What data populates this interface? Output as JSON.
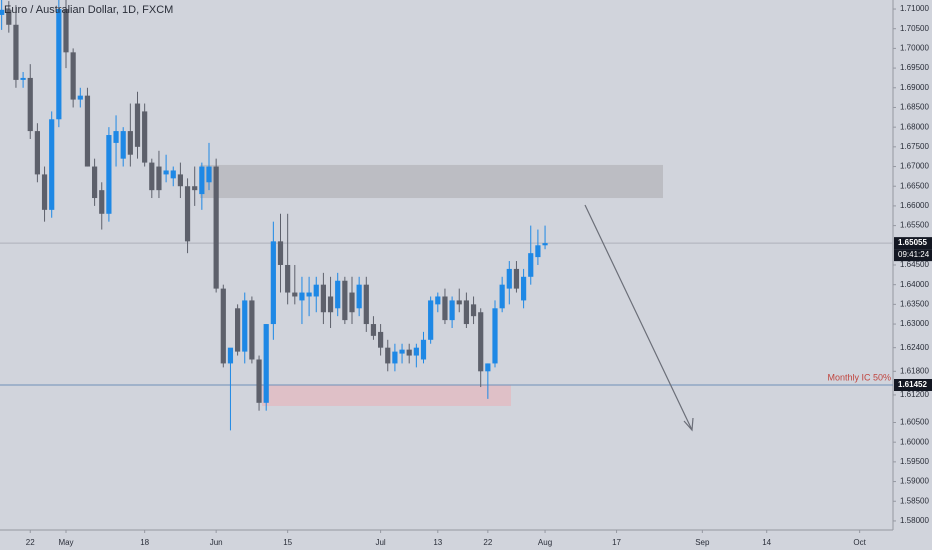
{
  "chart_data": {
    "type": "candlestick",
    "title": "Euro / Australian Dollar, 1D, FXCM",
    "categories": [
      null,
      null,
      null,
      null,
      "22",
      null,
      null,
      null,
      null,
      "May",
      null,
      null,
      null,
      null,
      null,
      null,
      null,
      null,
      null,
      null,
      "18",
      null,
      null,
      null,
      null,
      null,
      null,
      null,
      null,
      null,
      "Jun",
      null,
      null,
      null,
      null,
      null,
      null,
      null,
      null,
      null,
      "15",
      null,
      null,
      null,
      null,
      null,
      null,
      null,
      null,
      null,
      null,
      null,
      null,
      "Jul",
      null,
      null,
      null,
      null,
      null,
      null,
      null,
      "13",
      null,
      null,
      null,
      null,
      null,
      null,
      "22",
      null,
      null,
      null,
      null,
      null,
      null,
      null,
      "Aug",
      null,
      null,
      null,
      null,
      null,
      null,
      null,
      null,
      null,
      "17",
      null,
      null,
      null,
      null,
      null,
      null,
      null,
      null,
      null,
      null,
      null,
      "Sep",
      null,
      null,
      null,
      null,
      null,
      null,
      null,
      null,
      "14",
      null,
      null,
      null,
      null,
      null,
      null,
      null,
      null,
      null,
      null,
      null,
      null,
      "Oct",
      null,
      null,
      null
    ],
    "open": [
      1.7085,
      1.7098,
      1.706,
      1.692,
      1.6925,
      1.679,
      1.668,
      1.659,
      1.682,
      1.71,
      1.699,
      1.687,
      1.688,
      1.67,
      1.664,
      1.658,
      1.676,
      1.672,
      1.679,
      1.686,
      1.684,
      1.671,
      1.67,
      1.668,
      1.667,
      1.668,
      1.665,
      1.665,
      1.663,
      1.666,
      1.67,
      1.639,
      1.62,
      1.634,
      1.623,
      1.636,
      1.621,
      1.61,
      1.63,
      1.651,
      1.645,
      1.638,
      1.636,
      1.637,
      1.637,
      1.64,
      1.637,
      1.634,
      1.641,
      1.638,
      1.634,
      1.64,
      1.63,
      1.628,
      1.624,
      1.62,
      1.6225,
      1.6235,
      1.622,
      1.621,
      1.626,
      1.635,
      1.637,
      1.631,
      1.636,
      1.636,
      1.635,
      1.633,
      1.618,
      1.62,
      1.634,
      1.639,
      1.644,
      1.636,
      1.642,
      1.647,
      1.65,
      null,
      null,
      null,
      null,
      null,
      null,
      null,
      null,
      null,
      null,
      null,
      null,
      null,
      null,
      null,
      null,
      null,
      null,
      null,
      null,
      null,
      null,
      null,
      null,
      null,
      null,
      null,
      null,
      null,
      null,
      null,
      null,
      null,
      null,
      null,
      null,
      null,
      null,
      null,
      null,
      null,
      null,
      null,
      null,
      null,
      null,
      null
    ],
    "high": [
      1.7123,
      1.712,
      1.711,
      1.694,
      1.696,
      1.681,
      1.67,
      1.684,
      1.7123,
      1.7123,
      1.7,
      1.69,
      1.69,
      1.672,
      1.666,
      1.68,
      1.683,
      1.68,
      1.686,
      1.689,
      1.686,
      1.672,
      1.674,
      1.673,
      1.67,
      1.671,
      1.667,
      1.67,
      1.671,
      1.676,
      1.672,
      1.64,
      1.623,
      1.635,
      1.638,
      1.637,
      1.622,
      1.63,
      1.656,
      1.658,
      1.658,
      1.645,
      1.642,
      1.642,
      1.642,
      1.643,
      1.642,
      1.643,
      1.642,
      1.642,
      1.642,
      1.642,
      1.632,
      1.63,
      1.626,
      1.625,
      1.625,
      1.625,
      1.625,
      1.628,
      1.637,
      1.638,
      1.639,
      1.637,
      1.639,
      1.638,
      1.637,
      1.634,
      1.62,
      1.636,
      1.642,
      1.646,
      1.646,
      1.644,
      1.655,
      1.654,
      1.655,
      null,
      null,
      null,
      null,
      null,
      null,
      null,
      null,
      null,
      null,
      null,
      null,
      null,
      null,
      null,
      null,
      null,
      null,
      null,
      null,
      null,
      null,
      null,
      null,
      null,
      null,
      null,
      null,
      null,
      null,
      null,
      null,
      null,
      null,
      null,
      null,
      null,
      null,
      null,
      null,
      null,
      null,
      null,
      null,
      null,
      null,
      null
    ],
    "low": [
      1.7047,
      1.704,
      1.69,
      1.69,
      1.677,
      1.666,
      1.656,
      1.657,
      1.68,
      1.695,
      1.685,
      1.685,
      1.67,
      1.66,
      1.654,
      1.656,
      1.67,
      1.67,
      1.67,
      1.672,
      1.67,
      1.662,
      1.662,
      1.666,
      1.665,
      1.662,
      1.648,
      1.66,
      1.659,
      1.664,
      1.638,
      1.619,
      1.603,
      1.622,
      1.62,
      1.62,
      1.608,
      1.608,
      1.626,
      1.638,
      1.635,
      1.635,
      1.63,
      1.632,
      1.633,
      1.63,
      1.629,
      1.632,
      1.63,
      1.63,
      1.632,
      1.628,
      1.626,
      1.622,
      1.618,
      1.618,
      1.62,
      1.62,
      1.619,
      1.62,
      1.625,
      1.633,
      1.63,
      1.629,
      1.633,
      1.629,
      1.63,
      1.614,
      1.611,
      1.619,
      1.633,
      1.635,
      1.638,
      1.634,
      1.64,
      1.645,
      1.649,
      null,
      null,
      null,
      null,
      null,
      null,
      null,
      null,
      null,
      null,
      null,
      null,
      null,
      null,
      null,
      null,
      null,
      null,
      null,
      null,
      null,
      null,
      null,
      null,
      null,
      null,
      null,
      null,
      null,
      null,
      null,
      null,
      null,
      null,
      null,
      null,
      null,
      null,
      null,
      null,
      null,
      null,
      null,
      null,
      null,
      null,
      null
    ],
    "close": [
      1.7098,
      1.706,
      1.692,
      1.6925,
      1.679,
      1.668,
      1.659,
      1.682,
      1.71,
      1.699,
      1.687,
      1.688,
      1.67,
      1.662,
      1.658,
      1.678,
      1.679,
      1.679,
      1.673,
      1.675,
      1.671,
      1.664,
      1.664,
      1.669,
      1.669,
      1.665,
      1.651,
      1.664,
      1.67,
      1.67,
      1.639,
      1.62,
      1.624,
      1.623,
      1.636,
      1.621,
      1.61,
      1.63,
      1.651,
      1.645,
      1.638,
      1.637,
      1.638,
      1.638,
      1.64,
      1.633,
      1.633,
      1.641,
      1.631,
      1.633,
      1.64,
      1.63,
      1.627,
      1.624,
      1.62,
      1.623,
      1.6235,
      1.622,
      1.624,
      1.626,
      1.636,
      1.637,
      1.631,
      1.636,
      1.635,
      1.63,
      1.632,
      1.618,
      1.62,
      1.634,
      1.64,
      1.644,
      1.639,
      1.642,
      1.648,
      1.65,
      1.65055,
      null,
      null,
      null,
      null,
      null,
      null,
      null,
      null,
      null,
      null,
      null,
      null,
      null,
      null,
      null,
      null,
      null,
      null,
      null,
      null,
      null,
      null,
      null,
      null,
      null,
      null,
      null,
      null,
      null,
      null,
      null,
      null,
      null,
      null,
      null,
      null,
      null,
      null,
      null,
      null,
      null,
      null,
      null,
      null,
      null,
      null,
      null
    ],
    "up_color": "#1e88e5",
    "down_color": "#5d606b",
    "ylim": [
      1.5777,
      1.71229
    ],
    "yticks": [
      {
        "value": 1.58,
        "label": "1.58000"
      },
      {
        "value": 1.585,
        "label": "1.58500"
      },
      {
        "value": 1.59,
        "label": "1.59000"
      },
      {
        "value": 1.595,
        "label": "1.59500"
      },
      {
        "value": 1.6,
        "label": "1.60000"
      },
      {
        "value": 1.605,
        "label": "1.60500"
      },
      {
        "value": 1.612,
        "label": "1.61200"
      },
      {
        "value": 1.618,
        "label": "1.61800"
      },
      {
        "value": 1.624,
        "label": "1.62400"
      },
      {
        "value": 1.63,
        "label": "1.63000"
      },
      {
        "value": 1.635,
        "label": "1.63500"
      },
      {
        "value": 1.64,
        "label": "1.64000"
      },
      {
        "value": 1.645,
        "label": "1.64500"
      },
      {
        "value": 1.655,
        "label": "1.65500"
      },
      {
        "value": 1.66,
        "label": "1.66000"
      },
      {
        "value": 1.665,
        "label": "1.66500"
      },
      {
        "value": 1.67,
        "label": "1.67000"
      },
      {
        "value": 1.675,
        "label": "1.67500"
      },
      {
        "value": 1.68,
        "label": "1.68000"
      },
      {
        "value": 1.685,
        "label": "1.68500"
      },
      {
        "value": 1.69,
        "label": "1.69000"
      },
      {
        "value": 1.695,
        "label": "1.69500"
      },
      {
        "value": 1.7,
        "label": "1.70000"
      },
      {
        "value": 1.705,
        "label": "1.70500"
      },
      {
        "value": 1.71,
        "label": "1.71000"
      }
    ],
    "last_price": 1.65055,
    "countdown": "09:41:24",
    "hline": {
      "value": 1.61452,
      "label": "Monthly IC 50%",
      "color": "#6f8fb8"
    },
    "zones": [
      {
        "low": 1.662,
        "high": 1.6704,
        "color": "#b8b9be"
      },
      {
        "low": 1.6092,
        "high": 1.6145,
        "color": "#e2bcc3"
      }
    ]
  }
}
